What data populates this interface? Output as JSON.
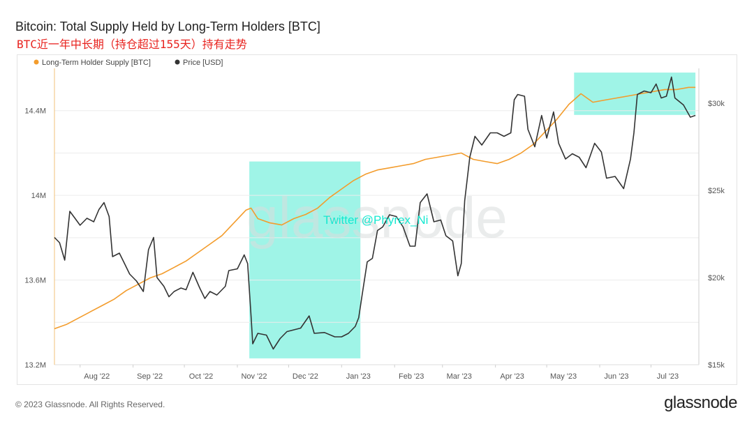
{
  "title": "Bitcoin: Total Supply Held by Long-Term Holders [BTC]",
  "subtitle": "BTC近一年中长期（持仓超过155天）持有走势",
  "watermark": "glassnode",
  "overlay_text": "Twitter @Phyrex_Ni",
  "footer": "© 2023 Glassnode. All Rights Reserved.",
  "brand": "glassnode",
  "colors": {
    "supply": "#f39c2c",
    "price": "#333333",
    "highlight": "#7ff0df"
  },
  "chart_data": {
    "type": "line",
    "title": "Bitcoin: Total Supply Held by Long-Term Holders [BTC]",
    "x_range": [
      "2022-07-17",
      "2023-07-29"
    ],
    "x_ticks": [
      {
        "label": "Aug '22",
        "date": "2022-08-01"
      },
      {
        "label": "Sep '22",
        "date": "2022-09-01"
      },
      {
        "label": "Oct '22",
        "date": "2022-10-01"
      },
      {
        "label": "Nov '22",
        "date": "2022-11-01"
      },
      {
        "label": "Dec '22",
        "date": "2022-12-01"
      },
      {
        "label": "Jan '23",
        "date": "2023-01-01"
      },
      {
        "label": "Feb '23",
        "date": "2023-02-01"
      },
      {
        "label": "Mar '23",
        "date": "2023-03-01"
      },
      {
        "label": "Apr '23",
        "date": "2023-04-01"
      },
      {
        "label": "May '23",
        "date": "2023-05-01"
      },
      {
        "label": "Jun '23",
        "date": "2023-06-01"
      },
      {
        "label": "Jul '23",
        "date": "2023-07-01"
      }
    ],
    "y_left": {
      "min": 13.2,
      "max": 14.6,
      "ticks": [
        {
          "value": 13.2,
          "label": "13.2M"
        },
        {
          "value": 13.6,
          "label": "13.6M"
        },
        {
          "value": 14.0,
          "label": "14M"
        },
        {
          "value": 14.4,
          "label": "14.4M"
        }
      ]
    },
    "y_right": {
      "min": 15000,
      "max": 32000,
      "ticks": [
        {
          "value": 15000,
          "label": "$15k"
        },
        {
          "value": 20000,
          "label": "$20k"
        },
        {
          "value": 25000,
          "label": "$25k"
        },
        {
          "value": 30000,
          "label": "$30k"
        }
      ]
    },
    "highlights": [
      {
        "x0": "2022-11-08",
        "x1": "2023-01-12",
        "y0": 13.23,
        "y1": 14.16
      },
      {
        "x0": "2023-05-17",
        "x1": "2023-07-27",
        "y0": 14.38,
        "y1": 14.58
      }
    ],
    "legend": {
      "position": "top-left"
    },
    "series": [
      {
        "name": "Long-Term Holder Supply [BTC]",
        "axis": "left",
        "points": [
          [
            "2022-07-17",
            13.37
          ],
          [
            "2022-07-24",
            13.39
          ],
          [
            "2022-07-31",
            13.42
          ],
          [
            "2022-08-07",
            13.45
          ],
          [
            "2022-08-14",
            13.48
          ],
          [
            "2022-08-21",
            13.51
          ],
          [
            "2022-08-28",
            13.55
          ],
          [
            "2022-09-04",
            13.58
          ],
          [
            "2022-09-11",
            13.61
          ],
          [
            "2022-09-18",
            13.63
          ],
          [
            "2022-09-25",
            13.66
          ],
          [
            "2022-10-02",
            13.69
          ],
          [
            "2022-10-09",
            13.73
          ],
          [
            "2022-10-16",
            13.77
          ],
          [
            "2022-10-23",
            13.81
          ],
          [
            "2022-10-30",
            13.87
          ],
          [
            "2022-11-06",
            13.93
          ],
          [
            "2022-11-09",
            13.94
          ],
          [
            "2022-11-13",
            13.89
          ],
          [
            "2022-11-20",
            13.87
          ],
          [
            "2022-11-27",
            13.86
          ],
          [
            "2022-12-04",
            13.89
          ],
          [
            "2022-12-11",
            13.91
          ],
          [
            "2022-12-18",
            13.94
          ],
          [
            "2022-12-25",
            13.99
          ],
          [
            "2023-01-01",
            14.03
          ],
          [
            "2023-01-08",
            14.07
          ],
          [
            "2023-01-15",
            14.1
          ],
          [
            "2023-01-22",
            14.12
          ],
          [
            "2023-01-29",
            14.13
          ],
          [
            "2023-02-05",
            14.14
          ],
          [
            "2023-02-12",
            14.15
          ],
          [
            "2023-02-19",
            14.17
          ],
          [
            "2023-02-26",
            14.18
          ],
          [
            "2023-03-05",
            14.19
          ],
          [
            "2023-03-12",
            14.2
          ],
          [
            "2023-03-19",
            14.17
          ],
          [
            "2023-03-26",
            14.16
          ],
          [
            "2023-04-02",
            14.15
          ],
          [
            "2023-04-09",
            14.17
          ],
          [
            "2023-04-16",
            14.2
          ],
          [
            "2023-04-23",
            14.24
          ],
          [
            "2023-04-30",
            14.3
          ],
          [
            "2023-05-07",
            14.36
          ],
          [
            "2023-05-14",
            14.43
          ],
          [
            "2023-05-21",
            14.48
          ],
          [
            "2023-05-28",
            14.44
          ],
          [
            "2023-06-04",
            14.45
          ],
          [
            "2023-06-11",
            14.46
          ],
          [
            "2023-06-18",
            14.47
          ],
          [
            "2023-06-25",
            14.48
          ],
          [
            "2023-07-02",
            14.49
          ],
          [
            "2023-07-09",
            14.5
          ],
          [
            "2023-07-16",
            14.5
          ],
          [
            "2023-07-23",
            14.51
          ],
          [
            "2023-07-27",
            14.51
          ]
        ]
      },
      {
        "name": "Price [USD]",
        "axis": "right",
        "points": [
          [
            "2022-07-17",
            22300
          ],
          [
            "2022-07-20",
            22000
          ],
          [
            "2022-07-23",
            21000
          ],
          [
            "2022-07-26",
            23800
          ],
          [
            "2022-07-29",
            23400
          ],
          [
            "2022-08-01",
            23000
          ],
          [
            "2022-08-05",
            23400
          ],
          [
            "2022-08-09",
            23200
          ],
          [
            "2022-08-12",
            23900
          ],
          [
            "2022-08-15",
            24300
          ],
          [
            "2022-08-18",
            23500
          ],
          [
            "2022-08-20",
            21200
          ],
          [
            "2022-08-24",
            21400
          ],
          [
            "2022-08-27",
            20800
          ],
          [
            "2022-08-30",
            20200
          ],
          [
            "2022-09-03",
            19800
          ],
          [
            "2022-09-07",
            19200
          ],
          [
            "2022-09-10",
            21600
          ],
          [
            "2022-09-13",
            22300
          ],
          [
            "2022-09-15",
            20000
          ],
          [
            "2022-09-19",
            19500
          ],
          [
            "2022-09-22",
            18900
          ],
          [
            "2022-09-25",
            19200
          ],
          [
            "2022-09-29",
            19400
          ],
          [
            "2022-10-02",
            19300
          ],
          [
            "2022-10-06",
            20300
          ],
          [
            "2022-10-10",
            19400
          ],
          [
            "2022-10-13",
            18800
          ],
          [
            "2022-10-16",
            19200
          ],
          [
            "2022-10-20",
            19000
          ],
          [
            "2022-10-25",
            19500
          ],
          [
            "2022-10-27",
            20400
          ],
          [
            "2022-11-01",
            20500
          ],
          [
            "2022-11-05",
            21300
          ],
          [
            "2022-11-07",
            20800
          ],
          [
            "2022-11-09",
            17800
          ],
          [
            "2022-11-10",
            16200
          ],
          [
            "2022-11-13",
            16800
          ],
          [
            "2022-11-18",
            16700
          ],
          [
            "2022-11-22",
            15900
          ],
          [
            "2022-11-26",
            16500
          ],
          [
            "2022-11-30",
            16900
          ],
          [
            "2022-12-04",
            17000
          ],
          [
            "2022-12-08",
            17100
          ],
          [
            "2022-12-13",
            17800
          ],
          [
            "2022-12-16",
            16800
          ],
          [
            "2022-12-22",
            16850
          ],
          [
            "2022-12-28",
            16600
          ],
          [
            "2023-01-01",
            16600
          ],
          [
            "2023-01-05",
            16800
          ],
          [
            "2023-01-09",
            17200
          ],
          [
            "2023-01-11",
            17700
          ],
          [
            "2023-01-13",
            19000
          ],
          [
            "2023-01-16",
            20900
          ],
          [
            "2023-01-19",
            21100
          ],
          [
            "2023-01-22",
            22700
          ],
          [
            "2023-01-25",
            22900
          ],
          [
            "2023-01-29",
            23600
          ],
          [
            "2023-02-02",
            23500
          ],
          [
            "2023-02-06",
            22900
          ],
          [
            "2023-02-10",
            21800
          ],
          [
            "2023-02-13",
            21800
          ],
          [
            "2023-02-16",
            24300
          ],
          [
            "2023-02-20",
            24800
          ],
          [
            "2023-02-24",
            23200
          ],
          [
            "2023-02-28",
            23300
          ],
          [
            "2023-03-03",
            22400
          ],
          [
            "2023-03-07",
            22100
          ],
          [
            "2023-03-10",
            20100
          ],
          [
            "2023-03-12",
            20800
          ],
          [
            "2023-03-14",
            24400
          ],
          [
            "2023-03-17",
            26900
          ],
          [
            "2023-03-20",
            28100
          ],
          [
            "2023-03-24",
            27600
          ],
          [
            "2023-03-29",
            28300
          ],
          [
            "2023-04-02",
            28300
          ],
          [
            "2023-04-06",
            28100
          ],
          [
            "2023-04-10",
            28300
          ],
          [
            "2023-04-12",
            30200
          ],
          [
            "2023-04-14",
            30500
          ],
          [
            "2023-04-18",
            30400
          ],
          [
            "2023-04-20",
            28500
          ],
          [
            "2023-04-24",
            27500
          ],
          [
            "2023-04-28",
            29300
          ],
          [
            "2023-05-01",
            28000
          ],
          [
            "2023-05-05",
            29500
          ],
          [
            "2023-05-08",
            27700
          ],
          [
            "2023-05-12",
            26800
          ],
          [
            "2023-05-16",
            27100
          ],
          [
            "2023-05-20",
            26900
          ],
          [
            "2023-05-24",
            26300
          ],
          [
            "2023-05-29",
            27700
          ],
          [
            "2023-06-02",
            27200
          ],
          [
            "2023-06-05",
            25700
          ],
          [
            "2023-06-10",
            25800
          ],
          [
            "2023-06-15",
            25100
          ],
          [
            "2023-06-19",
            26800
          ],
          [
            "2023-06-21",
            28300
          ],
          [
            "2023-06-23",
            30500
          ],
          [
            "2023-06-27",
            30700
          ],
          [
            "2023-07-01",
            30600
          ],
          [
            "2023-07-04",
            31100
          ],
          [
            "2023-07-07",
            30300
          ],
          [
            "2023-07-10",
            30400
          ],
          [
            "2023-07-13",
            31500
          ],
          [
            "2023-07-15",
            30300
          ],
          [
            "2023-07-20",
            29900
          ],
          [
            "2023-07-24",
            29200
          ],
          [
            "2023-07-27",
            29300
          ]
        ]
      }
    ]
  }
}
